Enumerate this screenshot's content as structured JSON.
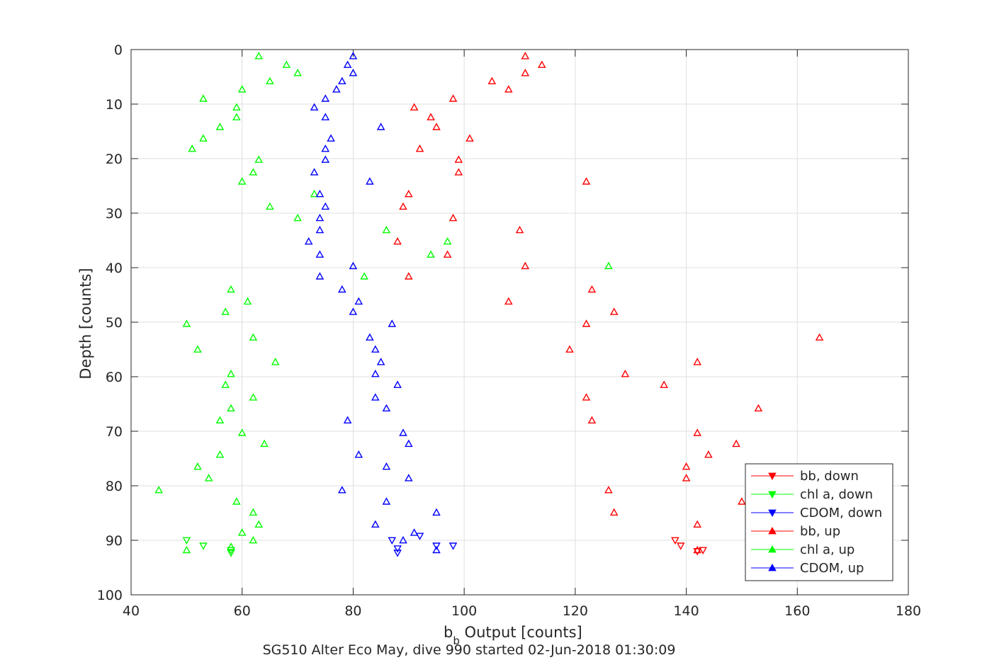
{
  "chart_data": {
    "type": "scatter",
    "title": "",
    "caption": "SG510 Alter Eco May, dive 990 started 02-Jun-2018 01:30:09",
    "xlabel_main": "b",
    "xlabel_sub": "b",
    "xlabel_rest": " Output [counts]",
    "ylabel": "Depth [counts]",
    "xlim": [
      40,
      180
    ],
    "ylim": [
      0,
      100
    ],
    "y_reversed": true,
    "grid": true,
    "legend_position": "lower-right",
    "xticks": [
      40,
      60,
      80,
      100,
      120,
      140,
      160,
      180
    ],
    "yticks": [
      0,
      10,
      20,
      30,
      40,
      50,
      60,
      70,
      80,
      90,
      100
    ],
    "series": [
      {
        "name": "bb, down",
        "color": "#ff0000",
        "marker": "triangle-down",
        "points": [
          [
            138,
            90
          ],
          [
            139,
            91
          ],
          [
            142,
            92
          ],
          [
            143,
            91.8
          ]
        ]
      },
      {
        "name": "chl a, down",
        "color": "#00ff00",
        "marker": "triangle-down",
        "points": [
          [
            50,
            90
          ],
          [
            53,
            91
          ],
          [
            58,
            91.8
          ],
          [
            58,
            92.3
          ]
        ]
      },
      {
        "name": "CDOM, down",
        "color": "#0000ff",
        "marker": "triangle-down",
        "points": [
          [
            87,
            90
          ],
          [
            88,
            91.5
          ],
          [
            88,
            92.3
          ],
          [
            92,
            89.2
          ],
          [
            95,
            91
          ],
          [
            98,
            91
          ]
        ]
      },
      {
        "name": "bb, up",
        "color": "#ff0000",
        "marker": "triangle-up",
        "points": [
          [
            111,
            1.2
          ],
          [
            114,
            2.8
          ],
          [
            111,
            4.3
          ],
          [
            105,
            5.8
          ],
          [
            108,
            7.3
          ],
          [
            98,
            9
          ],
          [
            91,
            10.6
          ],
          [
            94,
            12.4
          ],
          [
            95,
            14.2
          ],
          [
            101,
            16.3
          ],
          [
            92,
            18.2
          ],
          [
            99,
            20.2
          ],
          [
            99,
            22.5
          ],
          [
            122,
            24.2
          ],
          [
            90,
            26.5
          ],
          [
            89,
            28.8
          ],
          [
            98,
            30.9
          ],
          [
            110,
            33.1
          ],
          [
            88,
            35.2
          ],
          [
            97,
            37.6
          ],
          [
            111,
            39.7
          ],
          [
            90,
            41.6
          ],
          [
            123,
            44
          ],
          [
            108,
            46.2
          ],
          [
            127,
            48.1
          ],
          [
            122,
            50.3
          ],
          [
            164,
            52.8
          ],
          [
            119,
            55
          ],
          [
            142,
            57.3
          ],
          [
            129,
            59.5
          ],
          [
            136,
            61.5
          ],
          [
            122,
            63.8
          ],
          [
            153,
            65.8
          ],
          [
            123,
            68
          ],
          [
            142,
            70.3
          ],
          [
            149,
            72.3
          ],
          [
            144,
            74.3
          ],
          [
            140,
            76.5
          ],
          [
            140,
            78.6
          ],
          [
            126,
            80.8
          ],
          [
            150,
            82.9
          ],
          [
            127,
            84.9
          ],
          [
            142,
            87.1
          ],
          [
            142,
            91.8
          ]
        ]
      },
      {
        "name": "chl a, up",
        "color": "#00ff00",
        "marker": "triangle-up",
        "points": [
          [
            63,
            1.2
          ],
          [
            68,
            2.8
          ],
          [
            70,
            4.3
          ],
          [
            65,
            5.8
          ],
          [
            60,
            7.3
          ],
          [
            53,
            9
          ],
          [
            59,
            10.6
          ],
          [
            59,
            12.4
          ],
          [
            56,
            14.2
          ],
          [
            53,
            16.3
          ],
          [
            51,
            18.2
          ],
          [
            63,
            20.2
          ],
          [
            62,
            22.5
          ],
          [
            60,
            24.2
          ],
          [
            73,
            26.5
          ],
          [
            65,
            28.8
          ],
          [
            70,
            30.9
          ],
          [
            86,
            33.1
          ],
          [
            97,
            35.2
          ],
          [
            94,
            37.6
          ],
          [
            126,
            39.7
          ],
          [
            82,
            41.6
          ],
          [
            58,
            44
          ],
          [
            61,
            46.2
          ],
          [
            57,
            48.1
          ],
          [
            50,
            50.3
          ],
          [
            62,
            52.8
          ],
          [
            52,
            55
          ],
          [
            66,
            57.3
          ],
          [
            58,
            59.5
          ],
          [
            57,
            61.5
          ],
          [
            62,
            63.8
          ],
          [
            58,
            65.8
          ],
          [
            56,
            68
          ],
          [
            60,
            70.3
          ],
          [
            64,
            72.3
          ],
          [
            56,
            74.3
          ],
          [
            52,
            76.5
          ],
          [
            54,
            78.6
          ],
          [
            45,
            80.8
          ],
          [
            59,
            82.9
          ],
          [
            62,
            84.9
          ],
          [
            63,
            87.1
          ],
          [
            60,
            88.6
          ],
          [
            62,
            90
          ],
          [
            58,
            91.2
          ],
          [
            50,
            91.8
          ]
        ]
      },
      {
        "name": "CDOM, up",
        "color": "#0000ff",
        "marker": "triangle-up",
        "points": [
          [
            80,
            1.2
          ],
          [
            79,
            2.8
          ],
          [
            80,
            4.3
          ],
          [
            78,
            5.8
          ],
          [
            77,
            7.3
          ],
          [
            75,
            9
          ],
          [
            73,
            10.6
          ],
          [
            75,
            12.4
          ],
          [
            85,
            14.2
          ],
          [
            76,
            16.3
          ],
          [
            75,
            18.2
          ],
          [
            75,
            20.2
          ],
          [
            73,
            22.5
          ],
          [
            83,
            24.2
          ],
          [
            74,
            26.5
          ],
          [
            75,
            28.8
          ],
          [
            74,
            30.9
          ],
          [
            74,
            33.1
          ],
          [
            72,
            35.2
          ],
          [
            74,
            37.6
          ],
          [
            80,
            39.7
          ],
          [
            74,
            41.6
          ],
          [
            78,
            44
          ],
          [
            81,
            46.2
          ],
          [
            80,
            48.1
          ],
          [
            87,
            50.3
          ],
          [
            83,
            52.8
          ],
          [
            84,
            55
          ],
          [
            85,
            57.3
          ],
          [
            84,
            59.5
          ],
          [
            88,
            61.5
          ],
          [
            84,
            63.8
          ],
          [
            86,
            65.8
          ],
          [
            79,
            68
          ],
          [
            89,
            70.3
          ],
          [
            90,
            72.3
          ],
          [
            81,
            74.3
          ],
          [
            86,
            76.5
          ],
          [
            90,
            78.6
          ],
          [
            78,
            80.8
          ],
          [
            86,
            82.9
          ],
          [
            95,
            84.9
          ],
          [
            84,
            87.1
          ],
          [
            91,
            88.6
          ],
          [
            89,
            90
          ],
          [
            95,
            91.8
          ]
        ]
      }
    ]
  }
}
